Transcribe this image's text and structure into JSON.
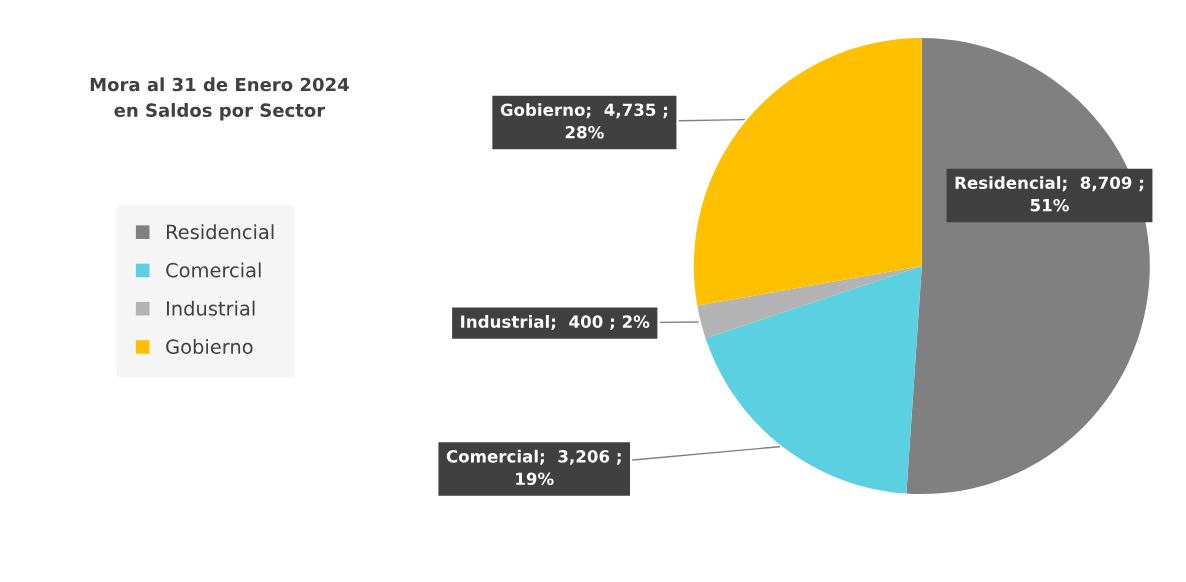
{
  "chart_data": {
    "type": "pie",
    "title": "Mora al 31 de Enero 2024\nen Saldos por Sector",
    "categories": [
      "Residencial",
      "Comercial",
      "Industrial",
      "Gobierno"
    ],
    "values": [
      8709,
      3206,
      400,
      4735
    ],
    "colors": [
      "#808080",
      "#5bd0e0",
      "#b3b3b3",
      "#ffc000"
    ],
    "value_labels": [
      "Residencial;  8,709 ;\n51%",
      "Comercial;  3,206 ;\n19%",
      "Industrial;  400 ; 2%",
      "Gobierno;  4,735 ;\n28%"
    ],
    "legend": "left"
  }
}
